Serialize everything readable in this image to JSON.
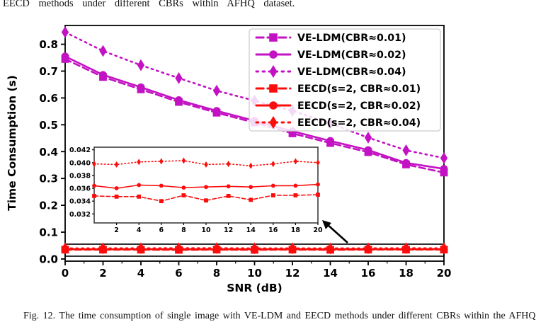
{
  "page": {
    "top_text": "EECD methods under different CBRs within AFHQ dataset.",
    "caption": "Fig. 12.   The time consumption of single image with VE-LDM and EECD methods under different CBRs within the AFHQ"
  },
  "chart_data": {
    "type": "line",
    "title": "",
    "xlabel": "SNR (dB)",
    "ylabel": "Time Consumption (s)",
    "x": [
      0,
      2,
      4,
      6,
      8,
      10,
      12,
      14,
      16,
      18,
      20
    ],
    "xlim": [
      0,
      20
    ],
    "ylim": [
      -0.008,
      0.87
    ],
    "xticks": [
      0,
      2,
      4,
      6,
      8,
      10,
      12,
      14,
      16,
      18,
      20
    ],
    "yticks": [
      0.0,
      0.1,
      0.2,
      0.3,
      0.4,
      0.5,
      0.6,
      0.7,
      0.8
    ],
    "grid": false,
    "legend_position": "upper right",
    "colors": {
      "ve_ldm": "#c312c3",
      "eecd": "#fb0d0d",
      "legend_border": "#cccccc"
    },
    "series": [
      {
        "name": "VE-LDM(CBR≈0.01)",
        "color": "#c312c3",
        "style": "dashed",
        "marker": "square",
        "values": [
          0.745,
          0.678,
          0.632,
          0.585,
          0.545,
          0.508,
          0.468,
          0.432,
          0.398,
          0.352,
          0.322
        ]
      },
      {
        "name": "VE-LDM(CBR≈0.02)",
        "color": "#c312c3",
        "style": "solid",
        "marker": "circle",
        "values": [
          0.755,
          0.686,
          0.64,
          0.592,
          0.552,
          0.515,
          0.476,
          0.44,
          0.406,
          0.358,
          0.336
        ]
      },
      {
        "name": "VE-LDM(CBR≈0.04)",
        "color": "#c312c3",
        "style": "dotted",
        "marker": "diamond",
        "values": [
          0.845,
          0.775,
          0.722,
          0.674,
          0.627,
          0.59,
          0.552,
          0.505,
          0.452,
          0.405,
          0.376
        ]
      },
      {
        "name": "EECD(s=2, CBR≈0.01)",
        "color": "#fb0d0d",
        "style": "dashed",
        "marker": "square",
        "values": [
          0.0348,
          0.0347,
          0.0347,
          0.034,
          0.0349,
          0.0341,
          0.0348,
          0.0342,
          0.0349,
          0.0349,
          0.035
        ]
      },
      {
        "name": "EECD(s=2, CBR≈0.02)",
        "color": "#fb0d0d",
        "style": "solid",
        "marker": "circle",
        "values": [
          0.0364,
          0.036,
          0.0365,
          0.0364,
          0.0361,
          0.0362,
          0.0363,
          0.0362,
          0.0364,
          0.0364,
          0.0366
        ]
      },
      {
        "name": "EECD(s=2, CBR≈0.04)",
        "color": "#fb0d0d",
        "style": "dotted",
        "marker": "diamond",
        "values": [
          0.0398,
          0.0397,
          0.0401,
          0.0402,
          0.0403,
          0.0397,
          0.0398,
          0.0395,
          0.0398,
          0.0402,
          0.04
        ]
      }
    ],
    "inset": {
      "series_indices": [
        3,
        4,
        5
      ],
      "xlim": [
        0,
        20
      ],
      "ylim": [
        0.0306,
        0.0424
      ],
      "xticks": [
        2,
        4,
        6,
        8,
        10,
        12,
        14,
        16,
        18,
        20
      ],
      "yticks": [
        0.032,
        0.034,
        0.036,
        0.038,
        0.04,
        0.042
      ]
    }
  }
}
